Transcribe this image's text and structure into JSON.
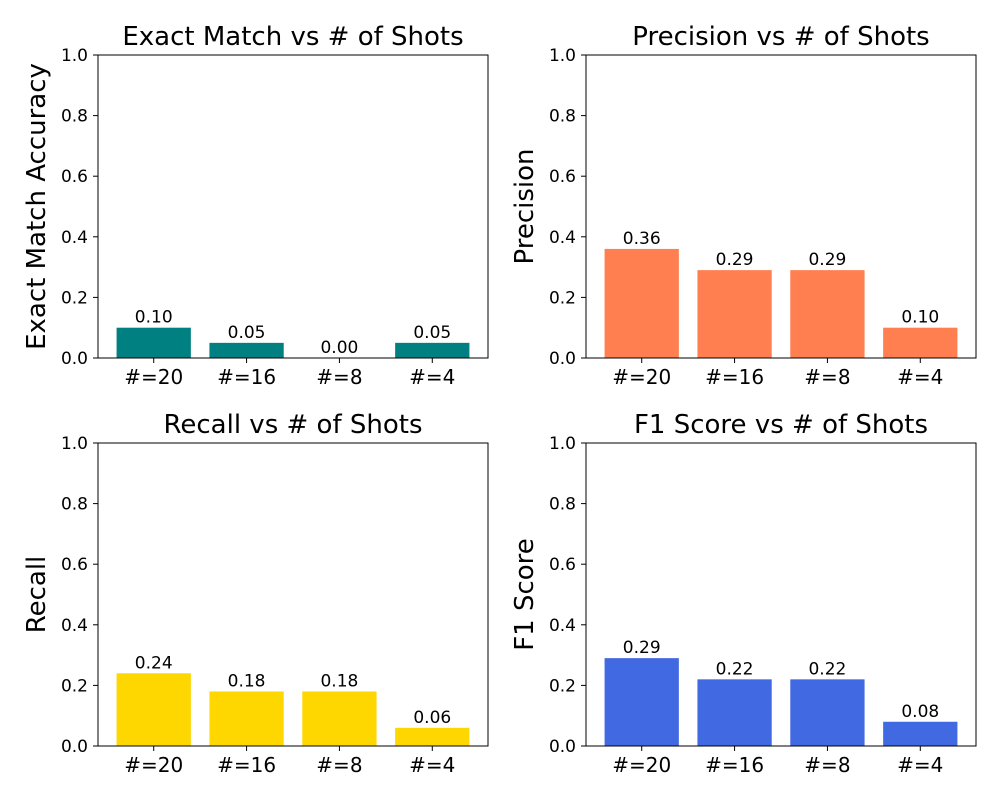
{
  "chart_data": [
    {
      "type": "bar",
      "title": "Exact Match vs # of Shots",
      "ylabel": "Exact Match Accuracy",
      "xlabel": "",
      "categories": [
        "#=20",
        "#=16",
        "#=8",
        "#=4"
      ],
      "values": [
        0.1,
        0.05,
        0.0,
        0.05
      ],
      "value_labels": [
        "0.10",
        "0.05",
        "0.00",
        "0.05"
      ],
      "ylim": [
        0,
        1.0
      ],
      "yticks": [
        "0.0",
        "0.2",
        "0.4",
        "0.6",
        "0.8",
        "1.0"
      ],
      "color": "#008080",
      "grid": false
    },
    {
      "type": "bar",
      "title": "Precision vs # of Shots",
      "ylabel": "Precision",
      "xlabel": "",
      "categories": [
        "#=20",
        "#=16",
        "#=8",
        "#=4"
      ],
      "values": [
        0.36,
        0.29,
        0.29,
        0.1
      ],
      "value_labels": [
        "0.36",
        "0.29",
        "0.29",
        "0.10"
      ],
      "ylim": [
        0,
        1.0
      ],
      "yticks": [
        "0.0",
        "0.2",
        "0.4",
        "0.6",
        "0.8",
        "1.0"
      ],
      "color": "#FF7F50",
      "grid": false
    },
    {
      "type": "bar",
      "title": "Recall vs # of Shots",
      "ylabel": "Recall",
      "xlabel": "",
      "categories": [
        "#=20",
        "#=16",
        "#=8",
        "#=4"
      ],
      "values": [
        0.24,
        0.18,
        0.18,
        0.06
      ],
      "value_labels": [
        "0.24",
        "0.18",
        "0.18",
        "0.06"
      ],
      "ylim": [
        0,
        1.0
      ],
      "yticks": [
        "0.0",
        "0.2",
        "0.4",
        "0.6",
        "0.8",
        "1.0"
      ],
      "color": "#FFD700",
      "grid": false
    },
    {
      "type": "bar",
      "title": "F1 Score vs # of Shots",
      "ylabel": "F1 Score",
      "xlabel": "",
      "categories": [
        "#=20",
        "#=16",
        "#=8",
        "#=4"
      ],
      "values": [
        0.29,
        0.22,
        0.22,
        0.08
      ],
      "value_labels": [
        "0.29",
        "0.22",
        "0.22",
        "0.08"
      ],
      "ylim": [
        0,
        1.0
      ],
      "yticks": [
        "0.0",
        "0.2",
        "0.4",
        "0.6",
        "0.8",
        "1.0"
      ],
      "color": "#4169E1",
      "grid": false
    }
  ]
}
